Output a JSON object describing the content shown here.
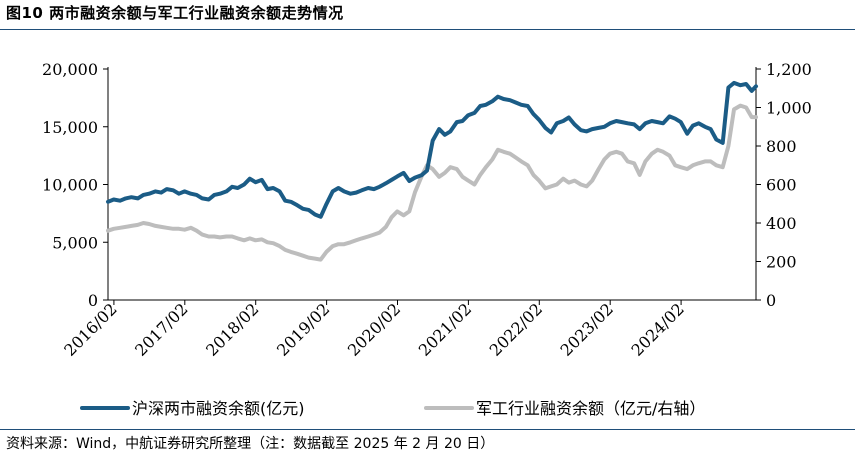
{
  "figure": {
    "title": "图10  两市融资余额与军工行业融资余额走势情况",
    "source": "资料来源：Wind，中航证券研究所整理（注：数据截至 2025 年 2 月 20 日）"
  },
  "chart_data": {
    "type": "line",
    "title": "图10  两市融资余额与军工行业融资余额走势情况",
    "xlabel": "",
    "ylabel": "",
    "y2label": "",
    "x_ticks": [
      "2016/02",
      "2017/02",
      "2018/02",
      "2019/02",
      "2020/02",
      "2021/02",
      "2022/02",
      "2023/02",
      "2024/02"
    ],
    "x_range": [
      2016.0,
      2025.14
    ],
    "ylim_left": [
      0,
      20000
    ],
    "ylim_right": [
      0,
      1200
    ],
    "left_ticks": [
      "0",
      "5,000",
      "10,000",
      "15,000",
      "20,000"
    ],
    "right_ticks": [
      "0",
      "200",
      "400",
      "600",
      "800",
      "1,000",
      "1,200"
    ],
    "grid": false,
    "legend_position": "bottom",
    "colors": {
      "primary": "#1b5c86",
      "secondary": "#bdbdbd"
    },
    "series": [
      {
        "name": "沪深两市融资余额(亿元)",
        "axis": "left",
        "x": [
          2016.0,
          2016.08,
          2016.17,
          2016.25,
          2016.33,
          2016.42,
          2016.5,
          2016.58,
          2016.67,
          2016.75,
          2016.83,
          2016.92,
          2017.0,
          2017.08,
          2017.17,
          2017.25,
          2017.33,
          2017.42,
          2017.5,
          2017.58,
          2017.67,
          2017.75,
          2017.83,
          2017.92,
          2018.0,
          2018.08,
          2018.17,
          2018.25,
          2018.33,
          2018.42,
          2018.5,
          2018.58,
          2018.67,
          2018.75,
          2018.83,
          2018.92,
          2019.0,
          2019.08,
          2019.17,
          2019.25,
          2019.33,
          2019.42,
          2019.5,
          2019.58,
          2019.67,
          2019.75,
          2019.83,
          2019.92,
          2020.0,
          2020.08,
          2020.17,
          2020.25,
          2020.33,
          2020.42,
          2020.5,
          2020.58,
          2020.67,
          2020.75,
          2020.83,
          2020.92,
          2021.0,
          2021.08,
          2021.17,
          2021.25,
          2021.33,
          2021.42,
          2021.5,
          2021.58,
          2021.67,
          2021.75,
          2021.83,
          2021.92,
          2022.0,
          2022.08,
          2022.17,
          2022.25,
          2022.33,
          2022.42,
          2022.5,
          2022.58,
          2022.67,
          2022.75,
          2022.83,
          2022.92,
          2023.0,
          2023.08,
          2023.17,
          2023.25,
          2023.33,
          2023.42,
          2023.5,
          2023.58,
          2023.67,
          2023.75,
          2023.83,
          2023.92,
          2024.0,
          2024.08,
          2024.17,
          2024.25,
          2024.33,
          2024.42,
          2024.5,
          2024.58,
          2024.67,
          2024.75,
          2024.83,
          2024.92,
          2025.0,
          2025.08,
          2025.14
        ],
        "values": [
          8500,
          8700,
          8600,
          8800,
          8900,
          8800,
          9100,
          9200,
          9400,
          9300,
          9600,
          9500,
          9200,
          9400,
          9200,
          9100,
          8800,
          8700,
          9100,
          9200,
          9400,
          9800,
          9700,
          10000,
          10500,
          10200,
          10400,
          9600,
          9700,
          9400,
          8600,
          8500,
          8200,
          7900,
          7800,
          7400,
          7200,
          8300,
          9400,
          9700,
          9400,
          9200,
          9300,
          9500,
          9700,
          9600,
          9800,
          10100,
          10400,
          10700,
          11000,
          10300,
          10600,
          10800,
          11200,
          13800,
          14800,
          14300,
          14600,
          15400,
          15500,
          16000,
          16200,
          16800,
          16900,
          17200,
          17600,
          17400,
          17300,
          17100,
          16900,
          16800,
          16100,
          15600,
          14900,
          14500,
          15300,
          15500,
          15800,
          15200,
          14700,
          14600,
          14800,
          14900,
          15000,
          15300,
          15500,
          15400,
          15300,
          15200,
          14800,
          15300,
          15500,
          15400,
          15300,
          15900,
          15700,
          15400,
          14400,
          15100,
          15300,
          15000,
          14800,
          13900,
          13600,
          18400,
          18800,
          18600,
          18700,
          18100,
          18500
        ]
      },
      {
        "name": "军工行业融资余额（亿元/右轴）",
        "axis": "right",
        "x": [
          2016.0,
          2016.08,
          2016.17,
          2016.25,
          2016.33,
          2016.42,
          2016.5,
          2016.58,
          2016.67,
          2016.75,
          2016.83,
          2016.92,
          2017.0,
          2017.08,
          2017.17,
          2017.25,
          2017.33,
          2017.42,
          2017.5,
          2017.58,
          2017.67,
          2017.75,
          2017.83,
          2017.92,
          2018.0,
          2018.08,
          2018.17,
          2018.25,
          2018.33,
          2018.42,
          2018.5,
          2018.58,
          2018.67,
          2018.75,
          2018.83,
          2018.92,
          2019.0,
          2019.08,
          2019.17,
          2019.25,
          2019.33,
          2019.42,
          2019.5,
          2019.58,
          2019.67,
          2019.75,
          2019.83,
          2019.92,
          2020.0,
          2020.08,
          2020.17,
          2020.25,
          2020.33,
          2020.42,
          2020.5,
          2020.58,
          2020.67,
          2020.75,
          2020.83,
          2020.92,
          2021.0,
          2021.08,
          2021.17,
          2021.25,
          2021.33,
          2021.42,
          2021.5,
          2021.58,
          2021.67,
          2021.75,
          2021.83,
          2021.92,
          2022.0,
          2022.08,
          2022.17,
          2022.25,
          2022.33,
          2022.42,
          2022.5,
          2022.58,
          2022.67,
          2022.75,
          2022.83,
          2022.92,
          2023.0,
          2023.08,
          2023.17,
          2023.25,
          2023.33,
          2023.42,
          2023.5,
          2023.58,
          2023.67,
          2023.75,
          2023.83,
          2023.92,
          2024.0,
          2024.08,
          2024.17,
          2024.25,
          2024.33,
          2024.42,
          2024.5,
          2024.58,
          2024.67,
          2024.75,
          2024.83,
          2024.92,
          2025.0,
          2025.08,
          2025.14
        ],
        "values": [
          360,
          370,
          375,
          380,
          385,
          390,
          400,
          395,
          385,
          380,
          375,
          370,
          370,
          365,
          375,
          360,
          340,
          330,
          330,
          325,
          330,
          330,
          320,
          310,
          320,
          310,
          315,
          300,
          295,
          280,
          260,
          250,
          240,
          230,
          220,
          215,
          210,
          250,
          280,
          290,
          290,
          300,
          310,
          320,
          330,
          340,
          350,
          380,
          430,
          460,
          440,
          460,
          560,
          640,
          700,
          680,
          640,
          660,
          690,
          680,
          640,
          620,
          600,
          650,
          690,
          730,
          780,
          770,
          760,
          740,
          720,
          700,
          650,
          620,
          580,
          590,
          600,
          630,
          610,
          620,
          600,
          590,
          620,
          680,
          730,
          760,
          770,
          760,
          720,
          710,
          650,
          720,
          760,
          780,
          770,
          750,
          700,
          690,
          680,
          700,
          710,
          720,
          720,
          700,
          690,
          800,
          990,
          1010,
          1000,
          950,
          950
        ]
      }
    ]
  }
}
